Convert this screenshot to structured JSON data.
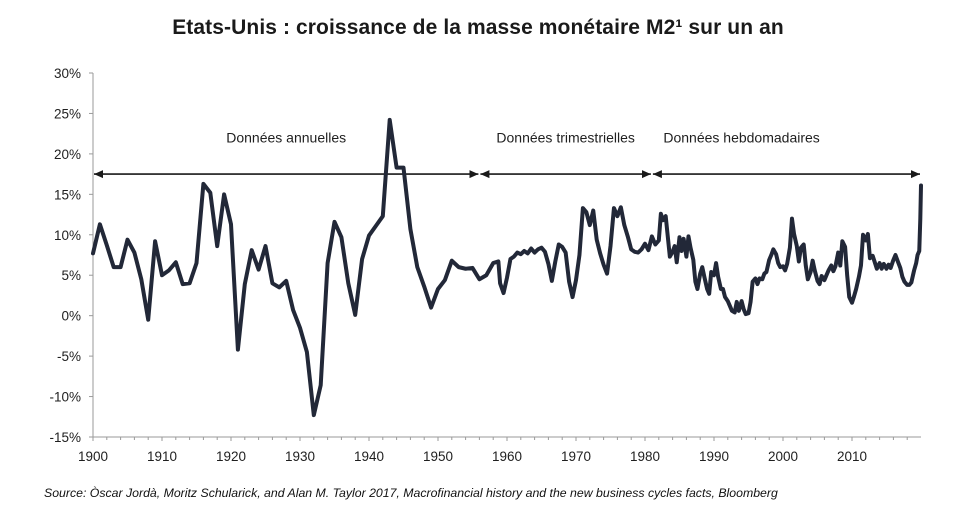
{
  "title": "Etats-Unis : croissance de la masse monétaire M2¹ sur un an",
  "source": "Source: Òscar Jordà, Moritz Schularick, and Alan M. Taylor 2017, Macrofinancial history and the new business cycles facts, Bloomberg",
  "colors": {
    "line": "#222838",
    "axis": "#9a9a9a",
    "arrow": "#1a1a1a"
  },
  "chart_data": {
    "type": "line",
    "title": "Etats-Unis : croissance de la masse monétaire M2¹ sur un an",
    "xlabel": "",
    "ylabel": "",
    "xlim": [
      1900,
      2020
    ],
    "ylim": [
      -15,
      30
    ],
    "grid": false,
    "legend": "none",
    "x_ticks": [
      1900,
      1910,
      1920,
      1930,
      1940,
      1950,
      1960,
      1970,
      1980,
      1990,
      2000,
      2010
    ],
    "y_ticks": [
      -15,
      -10,
      -5,
      0,
      5,
      10,
      15,
      20,
      25,
      30
    ],
    "y_tick_labels": [
      "-15%",
      "-10%",
      "-5%",
      "0%",
      "5%",
      "10%",
      "15%",
      "20%",
      "25%",
      "30%"
    ],
    "annotations": [
      {
        "text": "Données annuelles",
        "x_center": 1928,
        "y": 22
      },
      {
        "text": "Données trimestrielles",
        "x_center": 1968.5,
        "y": 22
      },
      {
        "text": "Données hebdomadaires",
        "x_center": 1994,
        "y": 22
      }
    ],
    "periods": [
      {
        "label": "Données annuelles",
        "from": 1900,
        "to": 1956
      },
      {
        "label": "Données trimestrielles",
        "from": 1956,
        "to": 1981
      },
      {
        "label": "Données hebdomadaires",
        "from": 1981,
        "to": 2020
      }
    ],
    "arrow_y": 17.5,
    "series": [
      {
        "values": [
          [
            1900,
            7.7
          ],
          [
            1901,
            11.3
          ],
          [
            1902,
            8.7
          ],
          [
            1903,
            6.0
          ],
          [
            1904,
            6.0
          ],
          [
            1905,
            9.4
          ],
          [
            1906,
            7.8
          ],
          [
            1907,
            4.5
          ],
          [
            1908,
            -0.5
          ],
          [
            1909,
            9.2
          ],
          [
            1910,
            5.0
          ],
          [
            1911,
            5.6
          ],
          [
            1912,
            6.6
          ],
          [
            1913,
            3.9
          ],
          [
            1914,
            4.0
          ],
          [
            1915,
            6.5
          ],
          [
            1916,
            16.3
          ],
          [
            1917,
            15.2
          ],
          [
            1918,
            8.6
          ],
          [
            1919,
            15.0
          ],
          [
            1920,
            11.3
          ],
          [
            1921,
            -4.2
          ],
          [
            1922,
            3.9
          ],
          [
            1923,
            8.1
          ],
          [
            1924,
            5.7
          ],
          [
            1925,
            8.6
          ],
          [
            1926,
            4.0
          ],
          [
            1927,
            3.5
          ],
          [
            1928,
            4.3
          ],
          [
            1929,
            0.7
          ],
          [
            1930,
            -1.5
          ],
          [
            1931,
            -4.5
          ],
          [
            1932,
            -12.3
          ],
          [
            1933,
            -8.6
          ],
          [
            1934,
            6.5
          ],
          [
            1935,
            11.6
          ],
          [
            1936,
            9.7
          ],
          [
            1937,
            4.0
          ],
          [
            1938,
            0.1
          ],
          [
            1939,
            7.0
          ],
          [
            1940,
            9.9
          ],
          [
            1941,
            11.1
          ],
          [
            1942,
            12.3
          ],
          [
            1943,
            24.2
          ],
          [
            1944,
            18.3
          ],
          [
            1945,
            18.3
          ],
          [
            1946,
            10.7
          ],
          [
            1947,
            6.0
          ],
          [
            1948,
            3.6
          ],
          [
            1949,
            1.0
          ],
          [
            1950,
            3.3
          ],
          [
            1951,
            4.4
          ],
          [
            1952,
            6.8
          ],
          [
            1953,
            6.0
          ],
          [
            1954,
            5.8
          ],
          [
            1955,
            5.9
          ],
          [
            1956,
            4.5
          ],
          [
            1957,
            5.0
          ],
          [
            1958,
            6.5
          ],
          [
            1958.75,
            6.7
          ],
          [
            1959,
            4.0
          ],
          [
            1959.5,
            2.8
          ],
          [
            1960,
            4.7
          ],
          [
            1960.5,
            7.0
          ],
          [
            1961,
            7.3
          ],
          [
            1961.5,
            7.8
          ],
          [
            1962,
            7.6
          ],
          [
            1962.5,
            8.0
          ],
          [
            1963,
            7.7
          ],
          [
            1963.5,
            8.3
          ],
          [
            1964,
            7.8
          ],
          [
            1964.5,
            8.2
          ],
          [
            1965,
            8.4
          ],
          [
            1965.5,
            7.9
          ],
          [
            1966,
            6.4
          ],
          [
            1966.5,
            4.3
          ],
          [
            1967,
            6.7
          ],
          [
            1967.5,
            8.8
          ],
          [
            1968,
            8.5
          ],
          [
            1968.5,
            7.8
          ],
          [
            1969,
            4.2
          ],
          [
            1969.5,
            2.3
          ],
          [
            1970,
            4.4
          ],
          [
            1970.5,
            7.5
          ],
          [
            1971,
            13.3
          ],
          [
            1971.5,
            12.8
          ],
          [
            1972,
            11.2
          ],
          [
            1972.5,
            13.0
          ],
          [
            1973,
            9.4
          ],
          [
            1973.5,
            7.7
          ],
          [
            1974,
            6.3
          ],
          [
            1974.5,
            5.2
          ],
          [
            1975,
            8.6
          ],
          [
            1975.5,
            13.3
          ],
          [
            1976,
            12.3
          ],
          [
            1976.5,
            13.4
          ],
          [
            1977,
            11.2
          ],
          [
            1977.5,
            9.8
          ],
          [
            1978,
            8.2
          ],
          [
            1978.5,
            7.9
          ],
          [
            1979,
            7.8
          ],
          [
            1979.5,
            8.2
          ],
          [
            1980,
            8.9
          ],
          [
            1980.5,
            8.1
          ],
          [
            1981,
            9.8
          ],
          [
            1981.5,
            8.8
          ],
          [
            1982,
            9.3
          ],
          [
            1982.3,
            12.6
          ],
          [
            1982.6,
            11.8
          ],
          [
            1983,
            12.3
          ],
          [
            1983.3,
            9.8
          ],
          [
            1983.6,
            7.3
          ],
          [
            1984,
            7.9
          ],
          [
            1984.3,
            8.6
          ],
          [
            1984.6,
            6.6
          ],
          [
            1985,
            9.7
          ],
          [
            1985.3,
            8.0
          ],
          [
            1985.6,
            9.5
          ],
          [
            1986,
            7.3
          ],
          [
            1986.3,
            9.8
          ],
          [
            1986.6,
            8.4
          ],
          [
            1987,
            6.9
          ],
          [
            1987.3,
            4.2
          ],
          [
            1987.6,
            3.3
          ],
          [
            1988,
            5.2
          ],
          [
            1988.3,
            6.0
          ],
          [
            1988.6,
            4.8
          ],
          [
            1989,
            3.3
          ],
          [
            1989.3,
            2.7
          ],
          [
            1989.6,
            5.4
          ],
          [
            1990,
            5.0
          ],
          [
            1990.3,
            6.5
          ],
          [
            1990.6,
            4.8
          ],
          [
            1991,
            3.3
          ],
          [
            1991.3,
            3.3
          ],
          [
            1991.6,
            2.3
          ],
          [
            1992,
            1.8
          ],
          [
            1992.3,
            1.2
          ],
          [
            1992.6,
            0.6
          ],
          [
            1993,
            0.4
          ],
          [
            1993.3,
            1.7
          ],
          [
            1993.6,
            0.6
          ],
          [
            1994,
            1.8
          ],
          [
            1994.3,
            0.8
          ],
          [
            1994.6,
            0.2
          ],
          [
            1995,
            0.3
          ],
          [
            1995.3,
            1.7
          ],
          [
            1995.6,
            4.2
          ],
          [
            1996,
            4.6
          ],
          [
            1996.3,
            3.9
          ],
          [
            1996.6,
            4.6
          ],
          [
            1997,
            4.5
          ],
          [
            1997.3,
            5.2
          ],
          [
            1997.6,
            5.4
          ],
          [
            1998,
            6.9
          ],
          [
            1998.3,
            7.5
          ],
          [
            1998.6,
            8.2
          ],
          [
            1999,
            7.6
          ],
          [
            1999.3,
            6.5
          ],
          [
            1999.6,
            6.0
          ],
          [
            2000,
            6.1
          ],
          [
            2000.3,
            5.6
          ],
          [
            2000.6,
            6.4
          ],
          [
            2001,
            8.4
          ],
          [
            2001.3,
            12.0
          ],
          [
            2001.6,
            10.1
          ],
          [
            2002,
            8.6
          ],
          [
            2002.3,
            6.7
          ],
          [
            2002.6,
            8.4
          ],
          [
            2003,
            8.8
          ],
          [
            2003.3,
            6.2
          ],
          [
            2003.6,
            4.5
          ],
          [
            2004,
            5.4
          ],
          [
            2004.3,
            6.8
          ],
          [
            2004.6,
            5.6
          ],
          [
            2005,
            4.3
          ],
          [
            2005.3,
            3.9
          ],
          [
            2005.6,
            4.9
          ],
          [
            2006,
            4.4
          ],
          [
            2006.3,
            5.0
          ],
          [
            2006.6,
            5.6
          ],
          [
            2007,
            6.2
          ],
          [
            2007.3,
            5.5
          ],
          [
            2007.6,
            6.1
          ],
          [
            2008,
            7.8
          ],
          [
            2008.3,
            6.2
          ],
          [
            2008.6,
            9.2
          ],
          [
            2009,
            8.5
          ],
          [
            2009.3,
            5.0
          ],
          [
            2009.6,
            2.3
          ],
          [
            2010,
            1.6
          ],
          [
            2010.3,
            2.4
          ],
          [
            2010.6,
            3.3
          ],
          [
            2011,
            4.8
          ],
          [
            2011.3,
            6.2
          ],
          [
            2011.6,
            10.0
          ],
          [
            2012,
            9.3
          ],
          [
            2012.3,
            10.1
          ],
          [
            2012.6,
            7.1
          ],
          [
            2013,
            7.4
          ],
          [
            2013.3,
            6.6
          ],
          [
            2013.6,
            5.8
          ],
          [
            2014,
            6.5
          ],
          [
            2014.3,
            5.8
          ],
          [
            2014.6,
            6.4
          ],
          [
            2015,
            5.8
          ],
          [
            2015.3,
            6.3
          ],
          [
            2015.6,
            5.9
          ],
          [
            2016,
            6.9
          ],
          [
            2016.3,
            7.5
          ],
          [
            2016.6,
            6.8
          ],
          [
            2017,
            5.9
          ],
          [
            2017.3,
            4.8
          ],
          [
            2017.6,
            4.2
          ],
          [
            2018,
            3.8
          ],
          [
            2018.3,
            3.8
          ],
          [
            2018.6,
            4.1
          ],
          [
            2019,
            5.6
          ],
          [
            2019.3,
            6.5
          ],
          [
            2019.5,
            7.5
          ],
          [
            2019.75,
            8.0
          ],
          [
            2019.9,
            12.0
          ],
          [
            2020,
            16.1
          ]
        ]
      }
    ]
  }
}
